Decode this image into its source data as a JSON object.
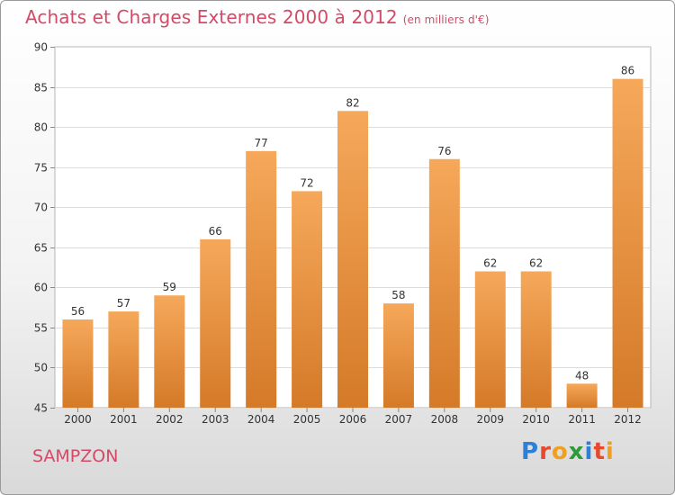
{
  "title": "Achats et Charges Externes 2000 à 2012",
  "subtitle": "(en milliers d'€)",
  "footer_label": "SAMPZON",
  "brand": {
    "text": "Proxiti",
    "letter_colors": [
      "#2e7fd6",
      "#e64a2e",
      "#f0a020",
      "#2e9a3a",
      "#2e7fd6",
      "#e64a2e",
      "#f0a020"
    ]
  },
  "chart_data": {
    "type": "bar",
    "categories": [
      "2000",
      "2001",
      "2002",
      "2003",
      "2004",
      "2005",
      "2006",
      "2007",
      "2008",
      "2009",
      "2010",
      "2011",
      "2012"
    ],
    "values": [
      56,
      57,
      59,
      66,
      77,
      72,
      82,
      58,
      76,
      62,
      62,
      48,
      86
    ],
    "ylim": [
      45,
      90
    ],
    "yticks": [
      45,
      50,
      55,
      60,
      65,
      70,
      75,
      80,
      85,
      90
    ],
    "grid": true,
    "bar_color_light": "#f6a85a",
    "bar_color_dark": "#d47a28"
  }
}
